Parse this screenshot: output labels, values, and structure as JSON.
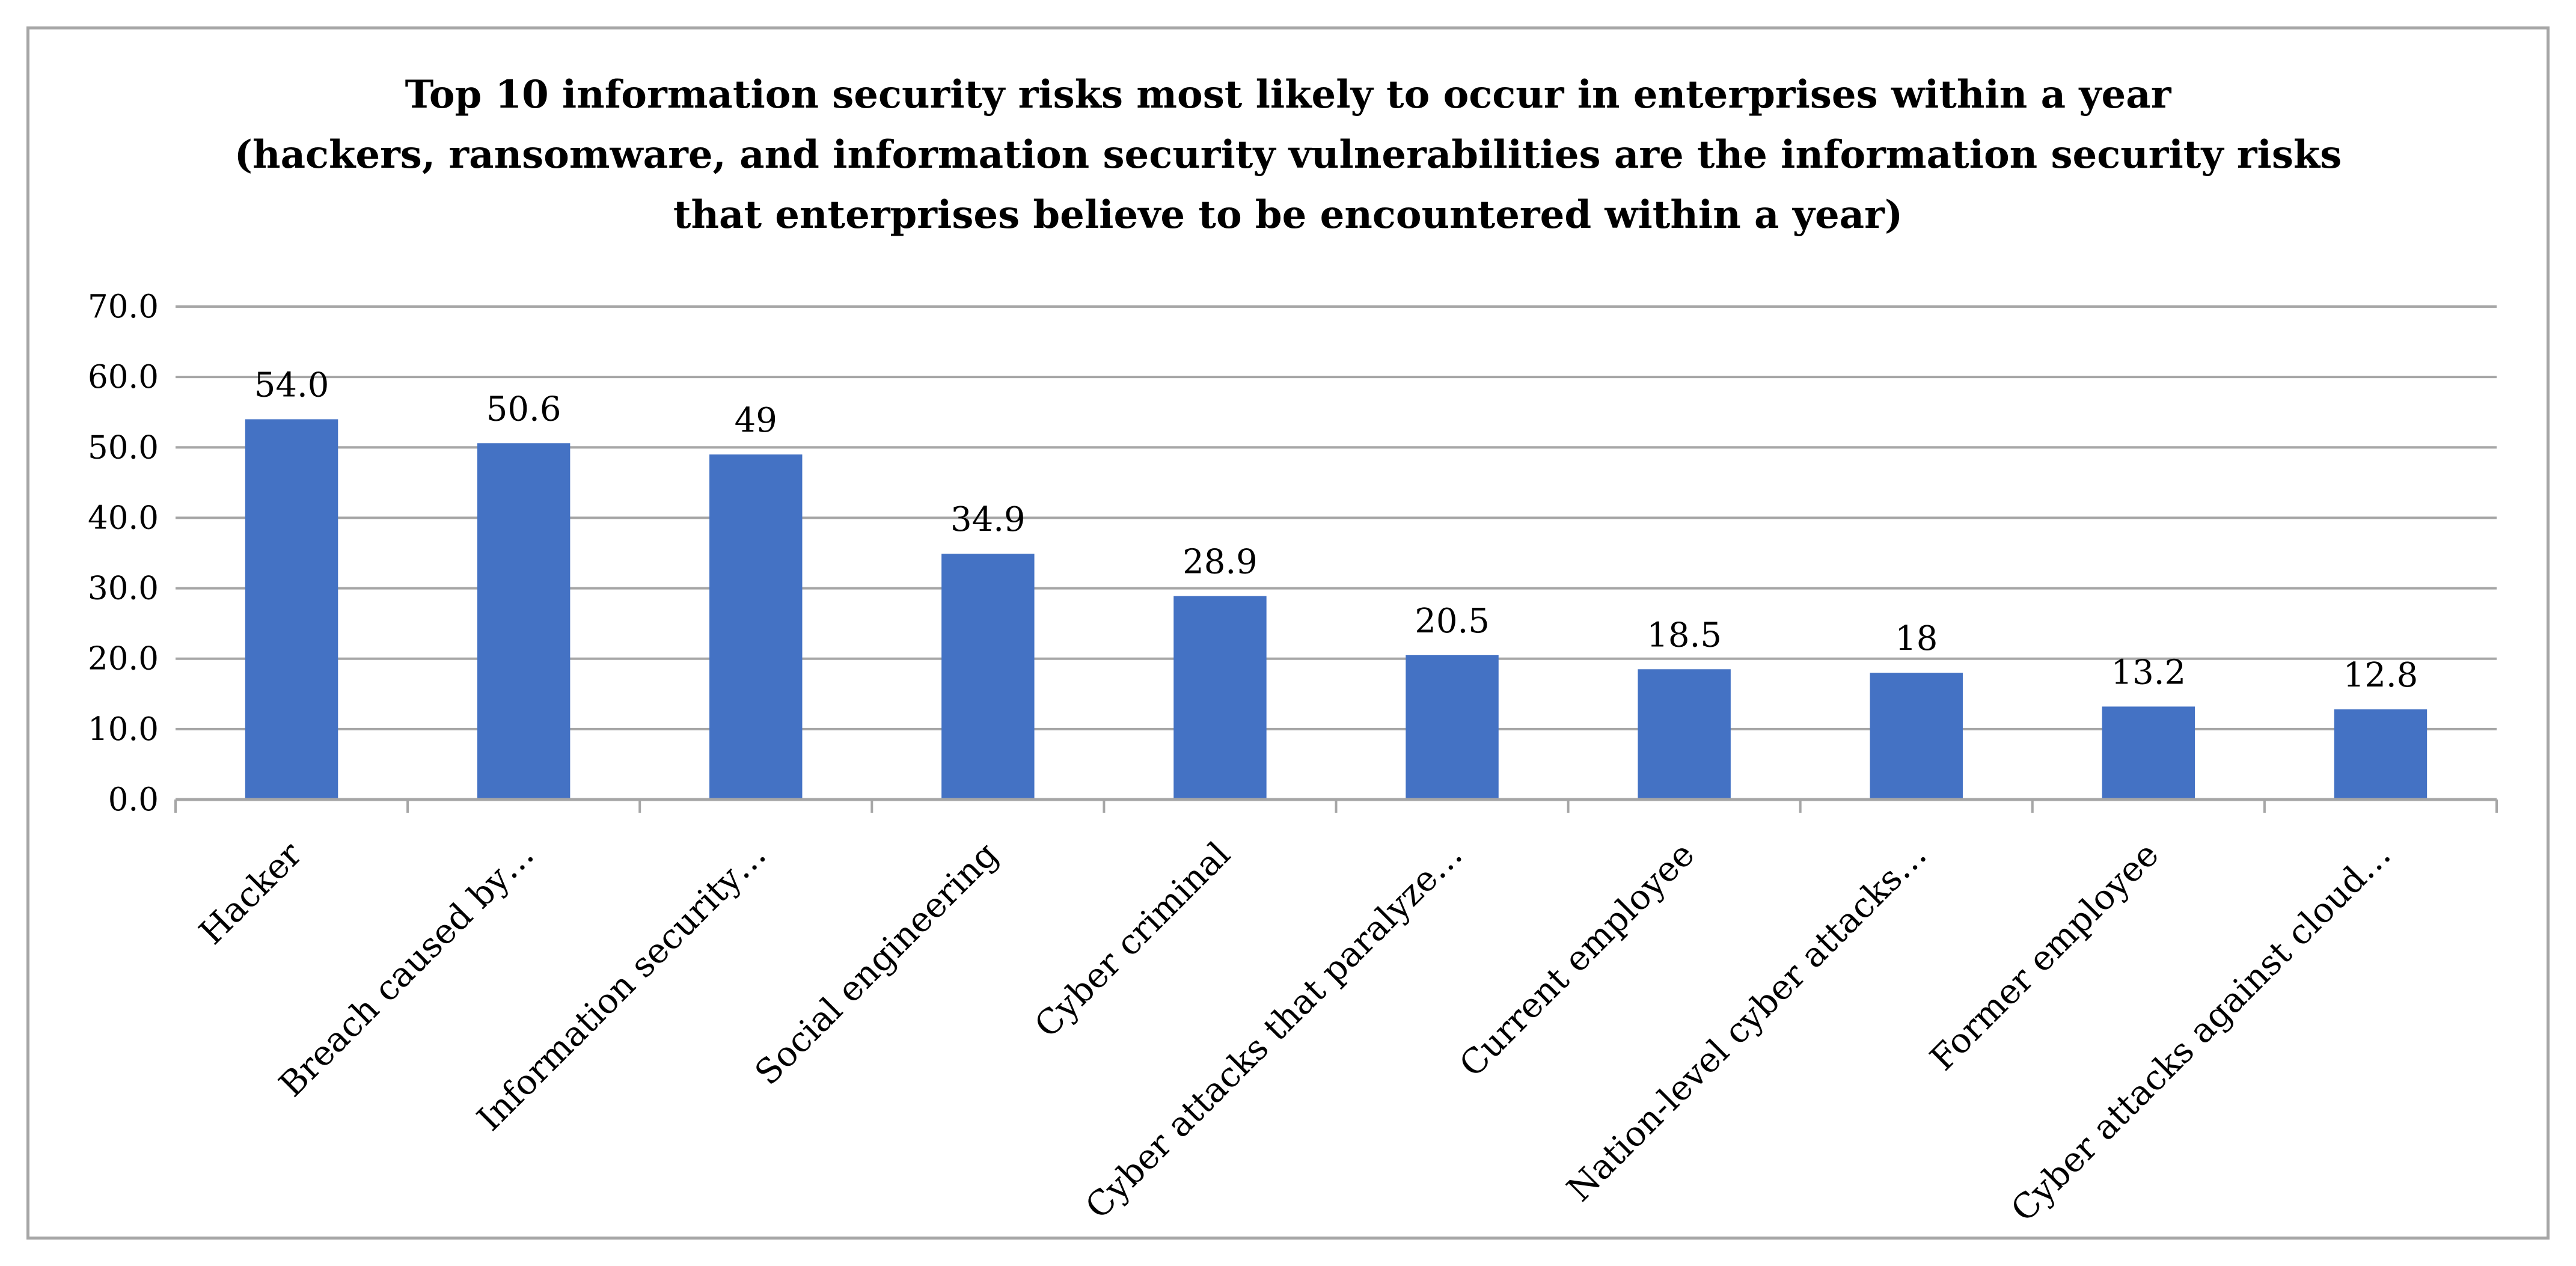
{
  "chart_data": {
    "type": "bar",
    "title_lines": [
      "Top 10 information security risks most likely to occur in enterprises within a year",
      "(hackers, ransomware, and information security vulnerabilities are the information security risks",
      "that enterprises believe to be encountered within a year)"
    ],
    "categories": [
      "Hacker",
      "Breach caused by…",
      "Information security…",
      "Social engineering",
      "Cyber criminal",
      "Cyber attacks that paralyze…",
      "Current employee",
      "Nation-level cyber attacks…",
      "Former employee",
      "Cyber attacks against cloud…"
    ],
    "values": [
      54.0,
      50.6,
      49,
      34.9,
      28.9,
      20.5,
      18.5,
      18,
      13.2,
      12.8
    ],
    "value_labels": [
      "54.0",
      "50.6",
      "49",
      "34.9",
      "28.9",
      "20.5",
      "18.5",
      "18",
      "13.2",
      "12.8"
    ],
    "yticks": [
      0,
      10,
      20,
      30,
      40,
      50,
      60,
      70
    ],
    "ytick_labels": [
      "0.0",
      "10.0",
      "20.0",
      "30.0",
      "40.0",
      "50.0",
      "60.0",
      "70.0"
    ],
    "ylim": [
      0,
      70
    ],
    "grid": true,
    "xlabel": "",
    "ylabel": "",
    "bar_color": "#4472c4",
    "grid_color": "#a6a6a6"
  }
}
